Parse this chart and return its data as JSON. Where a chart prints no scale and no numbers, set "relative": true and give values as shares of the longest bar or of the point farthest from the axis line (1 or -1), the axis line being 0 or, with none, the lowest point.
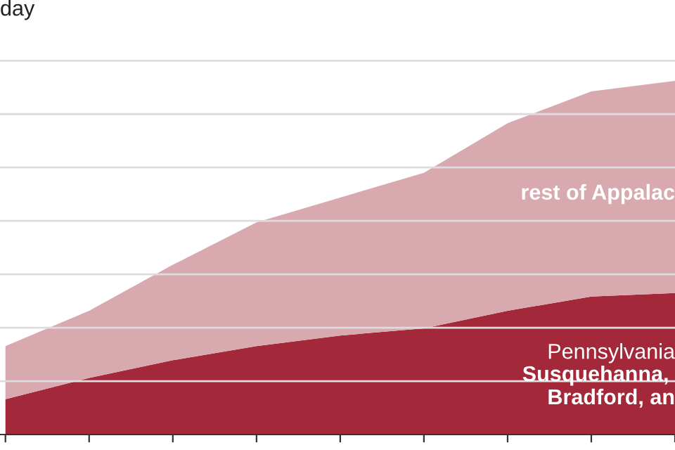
{
  "chart_data": {
    "type": "area",
    "stacked": true,
    "relative": true,
    "title": "day",
    "grid": "y",
    "legend": false,
    "categories": [
      null,
      null,
      null,
      null,
      null,
      null,
      null,
      null,
      null
    ],
    "series": [
      {
        "name": "Pennsylvania\nSusquehanna, \nBradford, an",
        "color": "#a3293a",
        "values": [
          0.1,
          0.16,
          0.21,
          0.25,
          0.28,
          0.3,
          0.35,
          0.39,
          0.4
        ]
      },
      {
        "name": "rest of Appalac",
        "color": "#d9a9b0",
        "values": [
          0.15,
          0.19,
          0.27,
          0.35,
          0.39,
          0.44,
          0.53,
          0.58,
          0.6
        ]
      }
    ]
  }
}
